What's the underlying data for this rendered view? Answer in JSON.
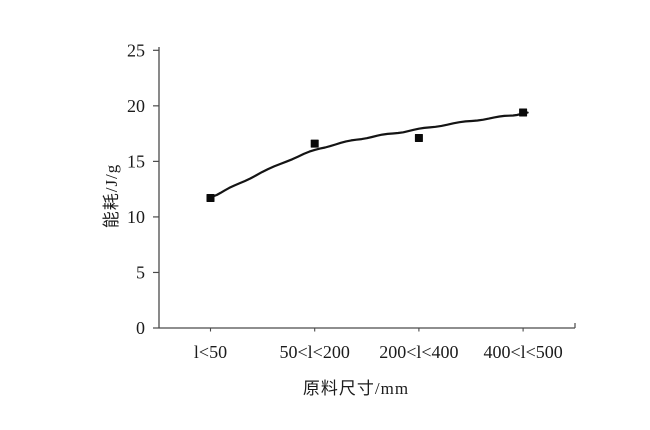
{
  "chart_data": {
    "type": "scatter",
    "title": "",
    "xlabel": "原料尺寸/mm",
    "ylabel": "能耗/J/g",
    "categories": [
      "l<50",
      "50<l<200",
      "200<l<400",
      "400<l<500"
    ],
    "values": [
      11.7,
      16.6,
      17.1,
      19.4
    ],
    "fit_curve_values": [
      11.75,
      16.0,
      17.9,
      19.3
    ],
    "ylim": [
      0,
      25
    ],
    "yticks": [
      0,
      5,
      10,
      15,
      20,
      25
    ],
    "grid": false,
    "legend_position": "none",
    "marker": "filled-square",
    "colors": {
      "marker": "#0a0a0a",
      "curve": "#141414",
      "axis": "#4a4a4a",
      "text": "#1c1c1c",
      "background": "#ffffff"
    }
  }
}
